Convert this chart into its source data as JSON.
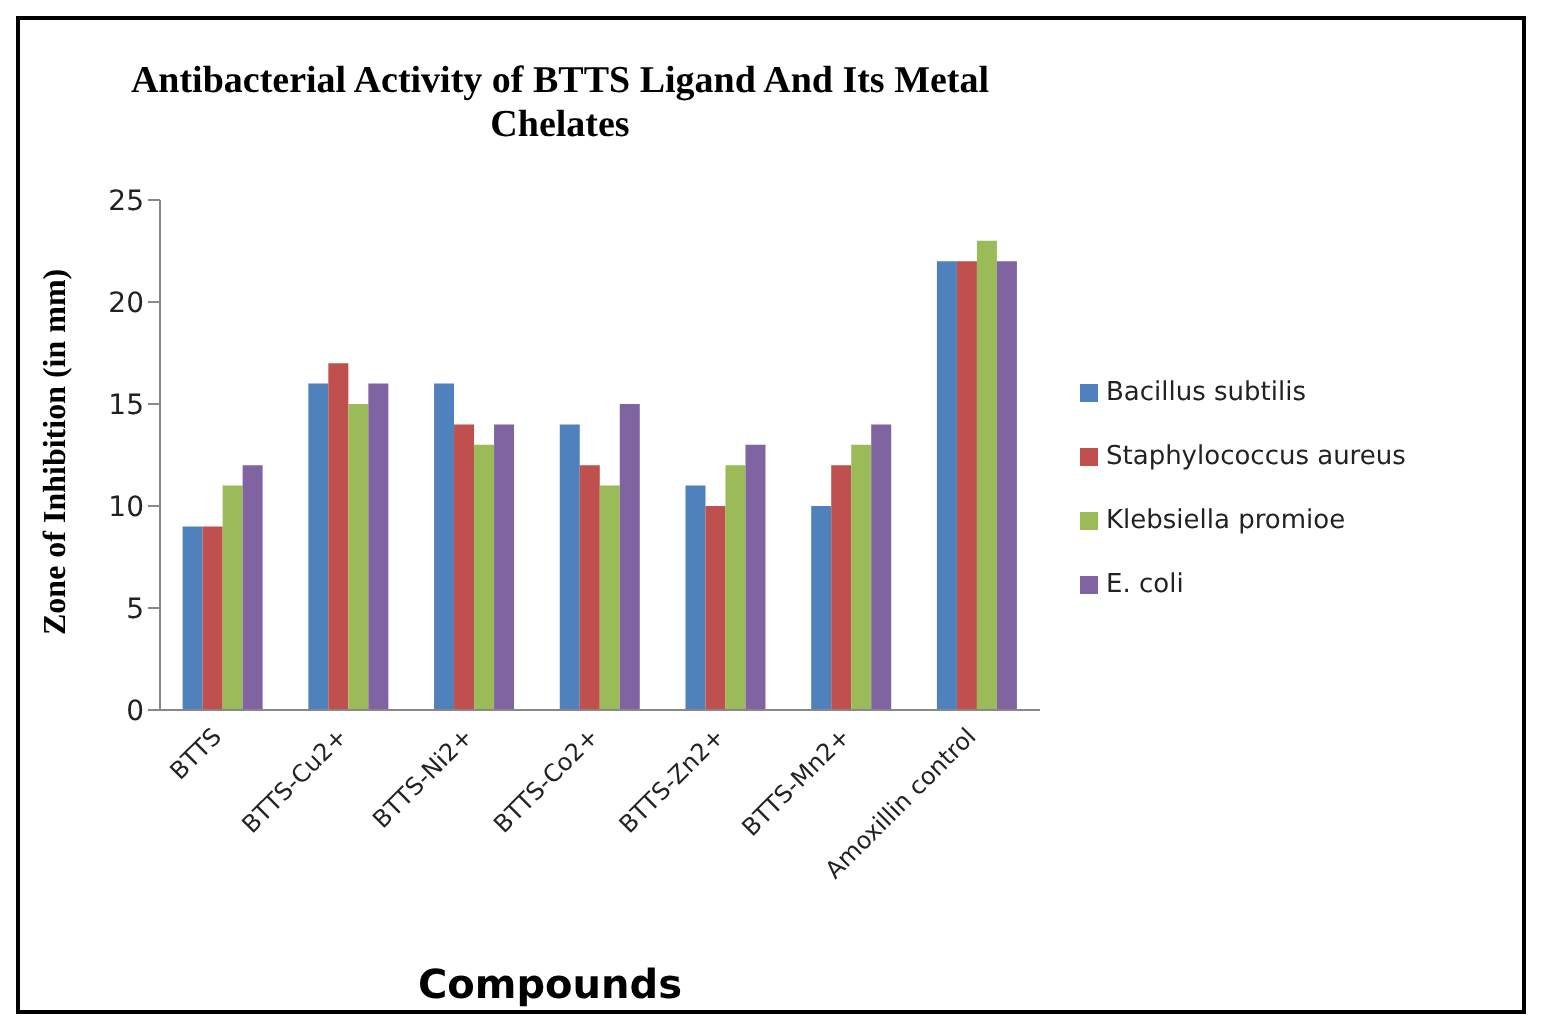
{
  "chart_data": {
    "type": "bar",
    "title": "Antibacterial Activity of BTTS Ligand And Its Metal Chelates",
    "xlabel": "Compounds",
    "ylabel": "Zone of Inhibition (in mm)",
    "categories": [
      "BTTS",
      "BTTS-Cu2+",
      "BTTS-Ni2+",
      "BTTS-Co2+",
      "BTTS-Zn2+",
      "BTTS-Mn2+",
      "Amoxillin control"
    ],
    "series": [
      {
        "name": "Bacillus subtilis",
        "color": "#4f81bd",
        "values": [
          9,
          16,
          16,
          14,
          11,
          10,
          22
        ]
      },
      {
        "name": "Staphylococcus aureus",
        "color": "#c0504d",
        "values": [
          9,
          17,
          14,
          12,
          10,
          12,
          22
        ]
      },
      {
        "name": "Klebsiella  promioe",
        "color": "#9bbb59",
        "values": [
          11,
          15,
          13,
          11,
          12,
          13,
          23
        ]
      },
      {
        "name": "E. coli",
        "color": "#8064a2",
        "values": [
          12,
          16,
          14,
          15,
          13,
          14,
          22
        ]
      }
    ],
    "ylim": [
      0,
      25
    ],
    "yticks": [
      0,
      5,
      10,
      15,
      20,
      25
    ],
    "grid": false,
    "legend": "right"
  }
}
